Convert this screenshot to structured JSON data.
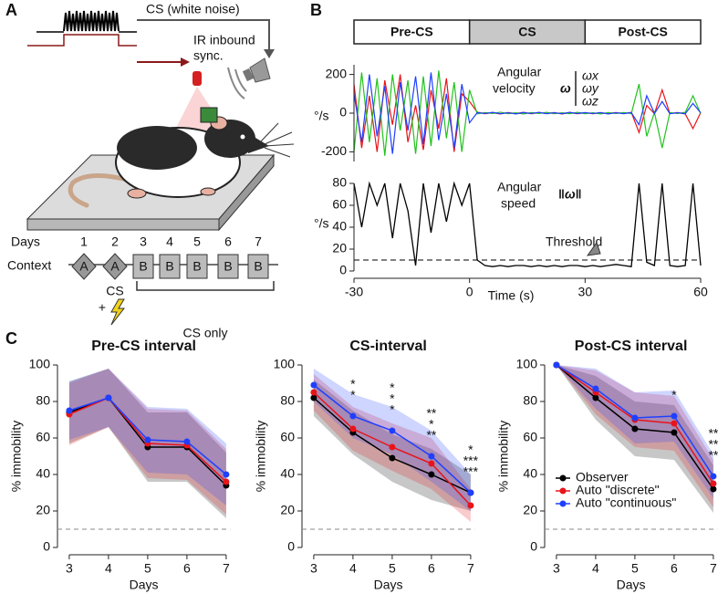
{
  "panel_a": {
    "label": "A",
    "cs_label": "CS (white noise)",
    "ir_lines": [
      "IR inbound",
      "sync."
    ],
    "days_label": "Days",
    "days": [
      1,
      2,
      3,
      4,
      5,
      6,
      7
    ],
    "context_label": "Context",
    "contexts": [
      "A",
      "A",
      "B",
      "B",
      "B",
      "B",
      "B"
    ],
    "shock_label": "CS",
    "plus": "+",
    "cs_only": "CS only"
  },
  "panel_b": {
    "label": "B",
    "phases": [
      "Pre-CS",
      "CS",
      "Post-CS"
    ],
    "x": [
      -30,
      -28,
      -26,
      -24,
      -22,
      -20,
      -18,
      -16,
      -14,
      -12,
      -10,
      -8,
      -6,
      -4,
      -2,
      0,
      2,
      4,
      6,
      8,
      10,
      12,
      14,
      16,
      18,
      20,
      22,
      24,
      26,
      28,
      30,
      32,
      34,
      36,
      38,
      40,
      42,
      44,
      46,
      48,
      50,
      52,
      54,
      56,
      58,
      60
    ],
    "xlim": [
      -30,
      60
    ],
    "xticks": [
      -30,
      0,
      30,
      60
    ],
    "xlabel": "Time (s)",
    "velocity": {
      "label_lines": [
        "Angular",
        "velocity"
      ],
      "unit": "°/s",
      "symbol": "ω",
      "ylim": [
        -250,
        250
      ],
      "yticks": [
        -200,
        0,
        200
      ],
      "series": [
        {
          "name": "ωx",
          "color": "#e8141b",
          "values": [
            150,
            -180,
            90,
            -200,
            170,
            -60,
            200,
            -150,
            40,
            -190,
            120,
            -80,
            180,
            -200,
            100,
            60,
            5,
            -3,
            2,
            -4,
            3,
            -2,
            4,
            -3,
            2,
            -2,
            3,
            -4,
            2,
            -3,
            2,
            -3,
            2,
            -2,
            3,
            -2,
            4,
            -100,
            40,
            -3,
            120,
            -2,
            3,
            -4,
            -80,
            3
          ]
        },
        {
          "name": "ωy",
          "color": "#22c21e",
          "values": [
            -200,
            210,
            -150,
            180,
            -220,
            200,
            -90,
            170,
            -210,
            190,
            -170,
            220,
            -130,
            160,
            -200,
            120,
            -4,
            3,
            -2,
            5,
            -3,
            2,
            -4,
            3,
            -2,
            4,
            -3,
            2,
            -3,
            4,
            -3,
            2,
            -4,
            3,
            -2,
            3,
            -2,
            150,
            -120,
            4,
            -180,
            3,
            -2,
            4,
            90,
            -3
          ]
        },
        {
          "name": "ωz",
          "color": "#1f3fff",
          "values": [
            100,
            -150,
            200,
            -120,
            140,
            -210,
            160,
            -90,
            190,
            -160,
            210,
            -140,
            100,
            -180,
            150,
            -50,
            3,
            -2,
            4,
            -3,
            2,
            -4,
            3,
            -2,
            4,
            -3,
            2,
            -3,
            4,
            -2,
            3,
            -2,
            3,
            -4,
            2,
            -3,
            3,
            -60,
            90,
            -2,
            60,
            -3,
            2,
            -3,
            50,
            2
          ]
        }
      ]
    },
    "speed": {
      "label_lines": [
        "Angular",
        "speed"
      ],
      "unit": "°/s",
      "symbol": "‖ω‖",
      "ylim": [
        0,
        80
      ],
      "yticks": [
        0,
        20,
        40,
        60,
        80
      ],
      "color": "#000000",
      "values": [
        80,
        40,
        80,
        60,
        80,
        30,
        80,
        55,
        5,
        80,
        35,
        80,
        45,
        80,
        60,
        80,
        10,
        5,
        4,
        5,
        4,
        5,
        5,
        4,
        5,
        4,
        5,
        4,
        5,
        5,
        4,
        5,
        4,
        5,
        6,
        5,
        4,
        80,
        8,
        5,
        80,
        5,
        4,
        5,
        80,
        5
      ],
      "threshold": 10,
      "threshold_label": "Threshold"
    }
  },
  "panel_c": {
    "label": "C"
  },
  "chart_data": [
    {
      "type": "line",
      "title": "Pre-CS interval",
      "xlabel": "Days",
      "ylabel": "% immobility",
      "x": [
        3,
        4,
        5,
        6,
        7
      ],
      "xlim": [
        2.7,
        7.1
      ],
      "xticks": [
        3,
        4,
        5,
        6,
        7
      ],
      "ylim": [
        0,
        100
      ],
      "yticks": [
        0,
        20,
        40,
        60,
        80,
        100
      ],
      "reference_line": 10,
      "series": [
        {
          "name": "Observer",
          "color": "#000000",
          "values": [
            74,
            82,
            55,
            55,
            34
          ],
          "sd": [
            17,
            16,
            19,
            19,
            18
          ],
          "stars": [
            null,
            null,
            null,
            null,
            null
          ]
        },
        {
          "name": "Auto \"discrete\"",
          "color": "#e8141b",
          "values": [
            73,
            82,
            57,
            56,
            36
          ],
          "sd": [
            17,
            16,
            19,
            19,
            18
          ],
          "stars": [
            null,
            null,
            null,
            null,
            null
          ]
        },
        {
          "name": "Auto \"continuous\"",
          "color": "#1f3fff",
          "values": [
            75,
            82,
            59,
            58,
            40
          ],
          "sd": [
            16,
            16,
            18,
            18,
            17
          ],
          "stars": [
            null,
            null,
            null,
            null,
            null
          ]
        }
      ]
    },
    {
      "type": "line",
      "title": "CS-interval",
      "xlabel": "Days",
      "ylabel": "% immobility",
      "x": [
        3,
        4,
        5,
        6,
        7
      ],
      "xlim": [
        2.7,
        7.1
      ],
      "xticks": [
        3,
        4,
        5,
        6,
        7
      ],
      "ylim": [
        0,
        100
      ],
      "yticks": [
        0,
        20,
        40,
        60,
        80,
        100
      ],
      "reference_line": 10,
      "series": [
        {
          "name": "Observer",
          "color": "#000000",
          "values": [
            82,
            63,
            49,
            40,
            30
          ],
          "sd": [
            10,
            12,
            13,
            14,
            10
          ],
          "stars": [
            null,
            null,
            "*",
            "**",
            "*"
          ]
        },
        {
          "name": "Auto \"discrete\"",
          "color": "#e8141b",
          "values": [
            85,
            65,
            55,
            46,
            23
          ],
          "sd": [
            10,
            12,
            13,
            14,
            9
          ],
          "stars": [
            null,
            "*",
            "*",
            "*",
            "***"
          ]
        },
        {
          "name": "Auto \"continuous\"",
          "color": "#1f3fff",
          "values": [
            89,
            72,
            64,
            50,
            30
          ],
          "sd": [
            9,
            12,
            13,
            14,
            10
          ],
          "stars": [
            null,
            "*",
            "*",
            "**",
            "***"
          ]
        }
      ]
    },
    {
      "type": "line",
      "title": "Post-CS interval",
      "xlabel": "Days",
      "ylabel": "% immobility",
      "x": [
        3,
        4,
        5,
        6,
        7
      ],
      "xlim": [
        2.7,
        7.1
      ],
      "xticks": [
        3,
        4,
        5,
        6,
        7
      ],
      "ylim": [
        0,
        100
      ],
      "yticks": [
        0,
        20,
        40,
        60,
        80,
        100
      ],
      "reference_line": 10,
      "legend": "lower-left",
      "series": [
        {
          "name": "Observer",
          "color": "#000000",
          "values": [
            100,
            82,
            65,
            63,
            32
          ],
          "sd": [
            0,
            12,
            15,
            15,
            13
          ],
          "stars": [
            null,
            null,
            null,
            "*",
            "**"
          ]
        },
        {
          "name": "Auto \"discrete\"",
          "color": "#e8141b",
          "values": [
            100,
            85,
            70,
            68,
            35
          ],
          "sd": [
            0,
            12,
            15,
            15,
            13
          ],
          "stars": [
            null,
            null,
            null,
            null,
            "**"
          ]
        },
        {
          "name": "Auto \"continuous\"",
          "color": "#1f3fff",
          "values": [
            100,
            87,
            71,
            72,
            39
          ],
          "sd": [
            0,
            11,
            14,
            14,
            12
          ],
          "stars": [
            null,
            null,
            null,
            null,
            "**"
          ]
        }
      ]
    }
  ]
}
